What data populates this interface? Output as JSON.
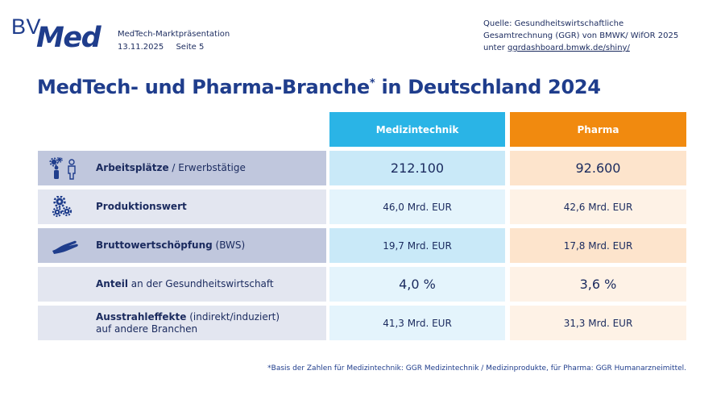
{
  "logo": {
    "bv": "BV",
    "med": "Med"
  },
  "meta": {
    "line1": "MedTech-Marktpräsentation",
    "date": "13.11.2025",
    "page": "Seite 5"
  },
  "source": {
    "line1": "Quelle: Gesundheitswirtschaftliche",
    "line2": "Gesamtrechnung (GGR) von BMWK/ WifOR 2025",
    "line3_prefix": "unter ",
    "line3_link": "ggrdashboard.bmwk.de/shiny/"
  },
  "title": {
    "text": "MedTech- und Pharma-Branche",
    "star": "*",
    "suffix": " in Deutschland 2024"
  },
  "table": {
    "col1": "Medizintechnik",
    "col2": "Pharma",
    "rows": [
      {
        "bold": "Arbeitsplätze",
        "rest": " / Erwerbstätige",
        "rest2": "",
        "v1": "212.100",
        "v2": "92.600",
        "icon": "people-gears-icon"
      },
      {
        "bold": "Produktionswert",
        "rest": "",
        "rest2": "",
        "v1": "46,0 Mrd. EUR",
        "v2": "42,6 Mrd. EUR",
        "icon": "gears-icon"
      },
      {
        "bold": "Bruttowertschöpfung",
        "rest": " (BWS)",
        "rest2": "",
        "v1": "19,7 Mrd. EUR",
        "v2": "17,8 Mrd. EUR",
        "icon": "hand-icon"
      },
      {
        "bold": "Anteil",
        "rest": " an der Gesundheitswirtschaft",
        "rest2": "",
        "v1": "4,0 %",
        "v2": "3,6 %",
        "icon": ""
      },
      {
        "bold": "Ausstrahleffekte",
        "rest": " (indirekt/induziert)",
        "rest2": "auf andere Branchen",
        "v1": "41,3 Mrd. EUR",
        "v2": "31,3 Mrd. EUR",
        "icon": ""
      }
    ]
  },
  "footnote": "*Basis der Zahlen für Medizintechnik:  GGR Medizintechnik  / Medizinprodukte,  für Pharma: GGR Humanarzneimittel.",
  "colors": {
    "brand": "#1f3d8c",
    "medizintechnik": "#2ab4e6",
    "pharma": "#f18a0f"
  }
}
